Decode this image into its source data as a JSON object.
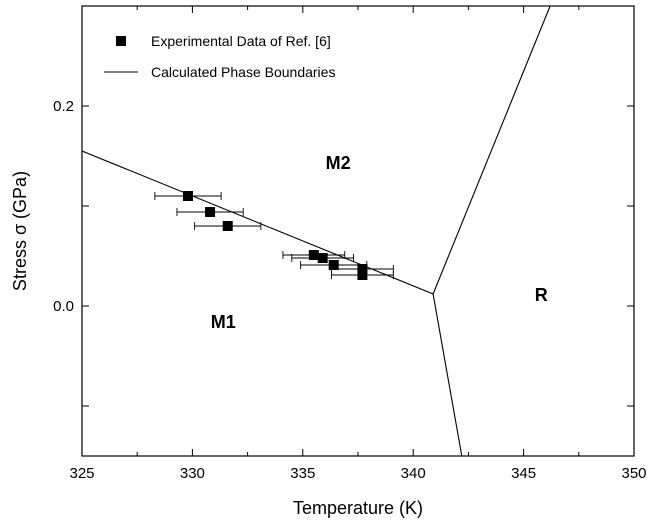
{
  "chart_data": {
    "type": "scatter",
    "xlabel": "Temperature (K)",
    "ylabel": "Stress σ (GPa)",
    "xlim": [
      325,
      350
    ],
    "ylim": [
      -0.15,
      0.3
    ],
    "x_ticks": [
      325,
      330,
      335,
      340,
      345,
      350
    ],
    "x_tick_labels": [
      "325",
      "330",
      "335",
      "340",
      "345",
      "350"
    ],
    "y_ticks": [
      -0.1,
      0.0,
      0.1,
      0.2
    ],
    "y_tick_labels": [
      "",
      "0.0",
      "",
      "0.2"
    ],
    "grid": false,
    "legend_position": "top-left",
    "legend": [
      {
        "label": "Experimental Data of Ref. [6]",
        "marker": "square"
      },
      {
        "label": "Calculated Phase Boundaries",
        "marker": "line"
      }
    ],
    "series": [
      {
        "name": "Experimental Data of Ref. [6]",
        "type": "scatter",
        "marker": "square",
        "color": "#000000",
        "points": [
          {
            "x": 329.8,
            "y": 0.11,
            "xerr": 1.5
          },
          {
            "x": 330.8,
            "y": 0.094,
            "xerr": 1.5
          },
          {
            "x": 331.6,
            "y": 0.08,
            "xerr": 1.5
          },
          {
            "x": 335.5,
            "y": 0.051,
            "xerr": 1.4
          },
          {
            "x": 335.9,
            "y": 0.048,
            "xerr": 1.4
          },
          {
            "x": 336.4,
            "y": 0.041,
            "xerr": 1.5
          },
          {
            "x": 337.7,
            "y": 0.037,
            "xerr": 1.4
          },
          {
            "x": 337.7,
            "y": 0.031,
            "xerr": 1.4
          }
        ]
      },
      {
        "name": "Calculated Phase Boundaries",
        "type": "line",
        "color": "#000000",
        "segments": [
          [
            [
              325,
              0.155
            ],
            [
              340.9,
              0.012
            ]
          ],
          [
            [
              340.9,
              0.012
            ],
            [
              346.2,
              0.3
            ]
          ],
          [
            [
              340.9,
              0.012
            ],
            [
              342.2,
              -0.15
            ]
          ]
        ]
      }
    ],
    "annotations": [
      {
        "text": "M1",
        "x": 331.4,
        "y": -0.022
      },
      {
        "text": "M2",
        "x": 336.6,
        "y": 0.137
      },
      {
        "text": "R",
        "x": 345.8,
        "y": 0.005
      }
    ]
  }
}
